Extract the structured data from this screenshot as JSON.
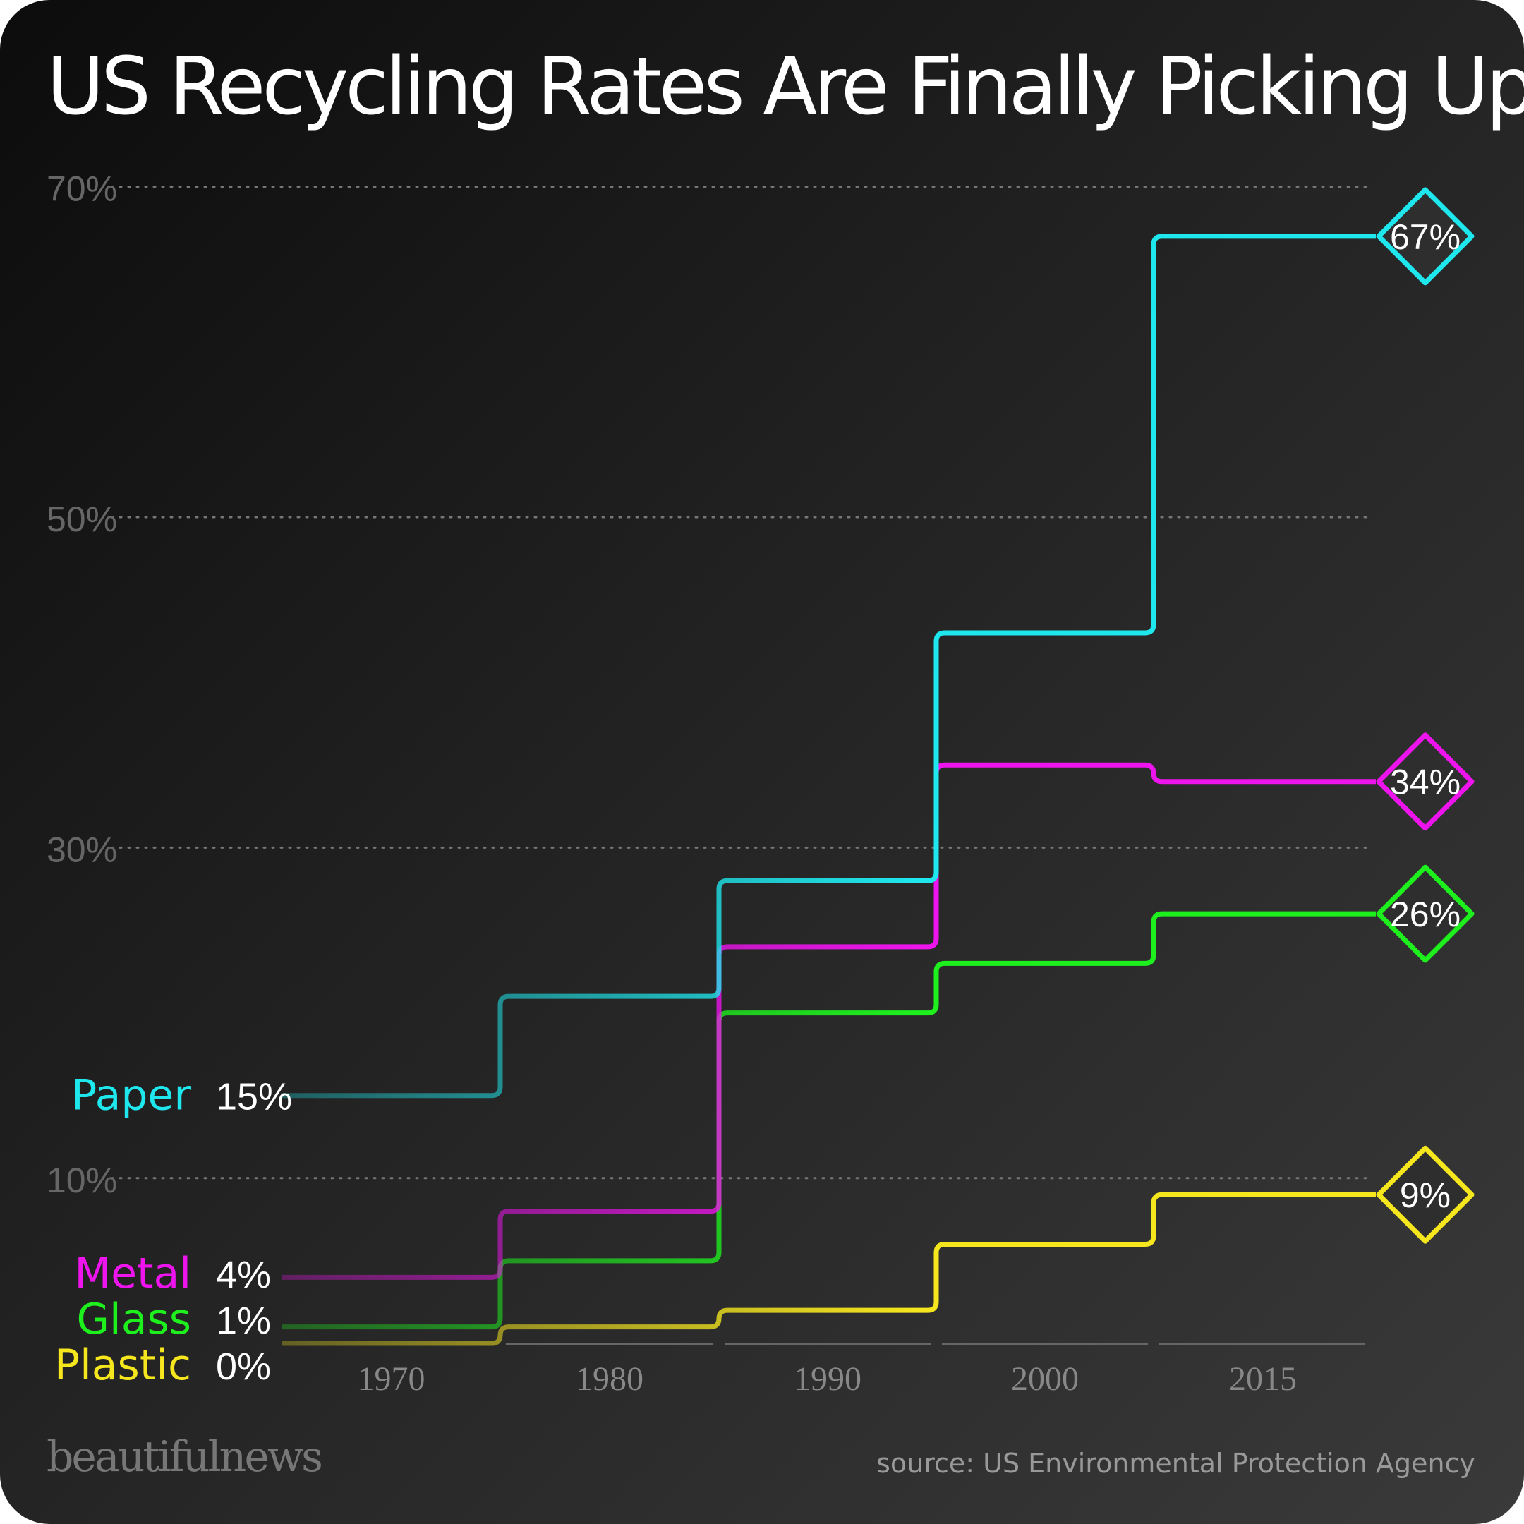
{
  "title": "US Recycling Rates Are Finally Picking Up",
  "brand": "beautifulnews",
  "source": "source: US Environmental Protection Agency",
  "chart_data": {
    "type": "line",
    "step": true,
    "categories": [
      "1970",
      "1980",
      "1990",
      "2000",
      "2015"
    ],
    "ylim": [
      0,
      70
    ],
    "yticks": [
      {
        "value": 10,
        "label": "10%"
      },
      {
        "value": 30,
        "label": "30%"
      },
      {
        "value": 50,
        "label": "50%"
      },
      {
        "value": 70,
        "label": "70%"
      }
    ],
    "grid": true,
    "series": [
      {
        "name": "Paper",
        "color": "#1ee8ee",
        "values": [
          15,
          21,
          28,
          43,
          67
        ],
        "start_label": "15%",
        "end_label": "67%"
      },
      {
        "name": "Metal",
        "color": "#ee14ee",
        "values": [
          4,
          8,
          24,
          35,
          34
        ],
        "start_label": "4%",
        "end_label": "34%"
      },
      {
        "name": "Glass",
        "color": "#1ef01e",
        "values": [
          1,
          5,
          20,
          23,
          26
        ],
        "start_label": "1%",
        "end_label": "26%"
      },
      {
        "name": "Plastic",
        "color": "#f5e61e",
        "values": [
          0,
          1,
          2,
          6,
          9
        ],
        "start_label": "0%",
        "end_label": "9%"
      }
    ]
  }
}
